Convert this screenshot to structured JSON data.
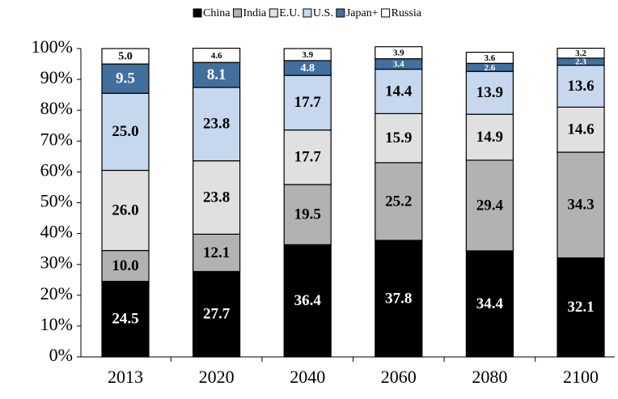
{
  "chart_data": {
    "type": "stacked_bar",
    "categories": [
      "2013",
      "2020",
      "2040",
      "2060",
      "2080",
      "2100"
    ],
    "series": [
      {
        "name": "China",
        "color": "#000000",
        "label_color": "#ffffff",
        "values": [
          24.5,
          27.7,
          36.4,
          37.8,
          34.4,
          32.1
        ],
        "value_labels": [
          "24.5",
          "27.7",
          "36.4",
          "37.8",
          "34.4",
          "32.1"
        ]
      },
      {
        "name": "India",
        "color": "#b2b2b2",
        "label_color": "#000000",
        "values": [
          10,
          12.1,
          19.5,
          25.2,
          29.4,
          34.3
        ],
        "value_labels": [
          "10.0",
          "12.1",
          "19.5",
          "25.2",
          "29.4",
          "34.3"
        ]
      },
      {
        "name": "E.U.",
        "color": "#e0e0e0",
        "label_color": "#000000",
        "values": [
          26,
          23.8,
          17.7,
          15.9,
          14.9,
          14.6
        ],
        "value_labels": [
          "26.0",
          "23.8",
          "17.7",
          "15.9",
          "14.9",
          "14.6"
        ]
      },
      {
        "name": "U.S.",
        "color": "#c6d7ee",
        "label_color": "#000000",
        "values": [
          25,
          23.8,
          17.7,
          14.4,
          13.9,
          13.6
        ],
        "value_labels": [
          "25.0",
          "23.8",
          "17.7",
          "14.4",
          "13.9",
          "13.6"
        ]
      },
      {
        "name": "Japan+",
        "color": "#41709e",
        "label_color": "#ffffff",
        "values": [
          9.5,
          8.1,
          4.8,
          3.4,
          2.6,
          2.3
        ],
        "value_labels": [
          "9.5",
          "8.1",
          "4.8",
          "3.4",
          "2.6",
          "2.3"
        ]
      },
      {
        "name": "Russia",
        "color": "#ffffff",
        "label_color": "#000000",
        "values": [
          5,
          4.6,
          3.9,
          3.9,
          3.6,
          3.2
        ],
        "value_labels": [
          "5.0",
          "4.6",
          "3.9",
          "3.9",
          "3.6",
          "3.2"
        ]
      }
    ],
    "ylim": [
      0,
      100
    ],
    "yticks": [
      {
        "value": 0,
        "label": "0%"
      },
      {
        "value": 10,
        "label": "10%"
      },
      {
        "value": 20,
        "label": "20%"
      },
      {
        "value": 30,
        "label": "30%"
      },
      {
        "value": 40,
        "label": "40%"
      },
      {
        "value": 50,
        "label": "50%"
      },
      {
        "value": 60,
        "label": "60%"
      },
      {
        "value": 70,
        "label": "70%"
      },
      {
        "value": 80,
        "label": "80%"
      },
      {
        "value": 90,
        "label": "90%"
      },
      {
        "value": 100,
        "label": "100%"
      }
    ],
    "legend": "top"
  }
}
